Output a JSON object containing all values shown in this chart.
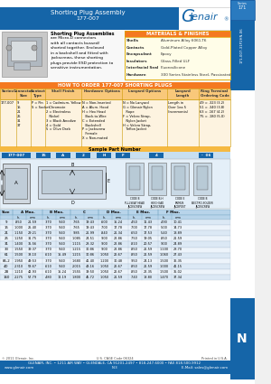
{
  "title_line1": "Shorting Plug Assembly",
  "title_line2": "177-007",
  "header_bg": "#1565a8",
  "header_text_color": "#ffffff",
  "orange_bg": "#f47920",
  "materials_header_bg": "#f47920",
  "materials_bg": "#fffde8",
  "footer_bg": "#1565a8",
  "dim_table_header_bg": "#b8d4ea",
  "dim_row_bg1": "#dce9f5",
  "dim_row_bg2": "#edf4fb",
  "white": "#ffffff",
  "tab_bg": "#2266aa",
  "how_order_header_bg": "#f47920",
  "order_table_header_bg": "#f9c87a",
  "order_row_bg": "#fdf3e0",
  "sample_bar_bg": "#f5b942",
  "sample_num_bg": "#c8dff0",
  "draw_bg": "#e8f2fa",
  "materials": [
    [
      "Shells",
      "Aluminum Alloy 6061-T6"
    ],
    [
      "Contacts",
      "Gold-Plated Copper Alloy"
    ],
    [
      "Encapsulant",
      "Epoxy"
    ],
    [
      "Insulators",
      "Glass-Filled ULF"
    ],
    [
      "Interfacial Seal",
      "Fluorosilicone"
    ],
    [
      "Hardware",
      "300 Series Stainless Steel, Passivated"
    ]
  ],
  "dim_rows": [
    [
      "9",
      ".850",
      "21.59",
      ".370",
      "9.40",
      ".765",
      "19.43",
      ".600",
      "15.24",
      ".450",
      "11.43",
      ".490",
      "10.41"
    ],
    [
      "15",
      "1.000",
      "25.40",
      ".370",
      "9.40",
      ".765",
      "19.43",
      ".700",
      "17.78",
      ".700",
      "17.78",
      ".500",
      "14.73"
    ],
    [
      "21",
      "1.150",
      "29.21",
      ".370",
      "9.40",
      ".985",
      "21.99",
      ".840",
      "21.34",
      ".650",
      "17.53",
      ".540",
      "13.89"
    ],
    [
      "25",
      "1.250",
      "31.75",
      ".370",
      "9.40",
      "1.085",
      "24.51",
      ".900",
      "22.86",
      ".750",
      "19.05",
      ".850",
      "21.59"
    ],
    [
      "31",
      "1.400",
      "35.56",
      ".370",
      "9.40",
      "1.115",
      "28.32",
      ".900",
      "22.86",
      ".810",
      "20.57",
      ".900",
      "24.89"
    ],
    [
      "33",
      "1.550",
      "39.37",
      ".370",
      "9.40",
      "1.215",
      "30.86",
      ".900",
      "22.86",
      ".850",
      "21.59",
      "1.100",
      "28.70"
    ],
    [
      "61",
      "1.500",
      "38.10",
      ".610",
      "15.49",
      "1.215",
      "30.86",
      "1.050",
      "26.67",
      ".850",
      "21.59",
      "1.060",
      "27.43"
    ],
    [
      "85-2",
      "1.950",
      "49.53",
      ".370",
      "9.40",
      "1.680",
      "41.40",
      "1.200",
      "30.48",
      ".950",
      "24.13",
      "1.500",
      "36.35"
    ],
    [
      "4D",
      "2.310",
      "58.67",
      ".610",
      "9.40",
      "2.015",
      "43.16",
      "1.050",
      "26.67",
      ".850",
      "21.59",
      "1.000",
      "41.15"
    ],
    [
      "2B",
      "1.210",
      "42.93",
      ".610",
      "15.24",
      "1.555",
      "39.50",
      "1.050",
      "26.67",
      ".850",
      "22.35",
      "1.500",
      "35.02"
    ],
    [
      "160",
      "2.275",
      "57.79",
      ".480",
      "12.19",
      "1.800",
      "45.72",
      "1.050",
      "21.59",
      ".740",
      "18.80",
      "1.470",
      "37.34"
    ]
  ],
  "footer_line1": "GLENAIR, INC. • 1211 AIR WAY • GLENDALE, CA 91201-2497 • 818-247-6000 • FAX 818-500-9912",
  "footer_line2a": "www.glenair.com",
  "footer_line2b": "N-3",
  "footer_line2c": "E-Mail: sales@glenair.com",
  "copyright": "© 2011 Glenair, Inc.",
  "uscode": "U.S. CAGE Code 06324",
  "printed": "Printed in U.S.A.",
  "tab_label": "N",
  "page_id": "171-007-31P2HN-06"
}
